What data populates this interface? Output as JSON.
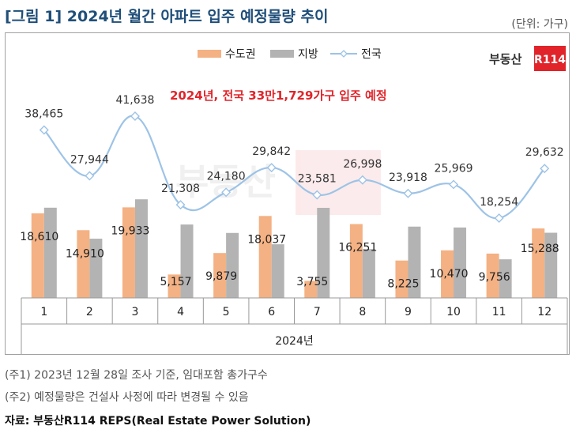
{
  "header": {
    "title": "[그림 1] 2024년 월간 아파트 입주 예정물량 추이",
    "unit": "(단위: 가구)"
  },
  "logo": {
    "text_left": "부동산",
    "text_box": "R114",
    "color": "#e0242a"
  },
  "annotation": {
    "text": "2024년, 전국 33만1,729가구 입주 예정",
    "color": "#e0242a"
  },
  "notes": [
    "(주1) 2023년 12월 28일 조사 기준, 임대포함 총가구수",
    "(주2) 예정물량은 건설사 사정에 따라 변경될 수 있음"
  ],
  "source": "자료: 부동산R114 REPS(Real Estate Power Solution)",
  "colors": {
    "capital": "#f4b183",
    "local": "#b3b3b3",
    "national": "#9dc3e6"
  },
  "chart_data": {
    "type": "bar",
    "categories": [
      "1",
      "2",
      "3",
      "4",
      "5",
      "6",
      "7",
      "8",
      "9",
      "10",
      "11",
      "12"
    ],
    "xlabel": "2024년",
    "series": [
      {
        "name": "수도권",
        "type": "bar",
        "values": [
          18610,
          14910,
          19933,
          5157,
          9879,
          18037,
          3755,
          16251,
          8225,
          10470,
          9756,
          15288
        ]
      },
      {
        "name": "지방",
        "type": "bar",
        "values": [
          19855,
          13034,
          21705,
          16151,
          14301,
          11805,
          19826,
          10747,
          15693,
          15499,
          8498,
          14344
        ]
      },
      {
        "name": "전국",
        "type": "line",
        "values": [
          38465,
          27944,
          41638,
          21308,
          24180,
          29842,
          23581,
          26998,
          23918,
          25969,
          18254,
          29632
        ]
      }
    ],
    "bar_labels": [
      "18,610",
      "14,910",
      "19,933",
      "5,157",
      "9,879",
      "18,037",
      "3,755",
      "16,251",
      "8,225",
      "10,470",
      "9,756",
      "15,288"
    ],
    "line_labels": [
      "38,465",
      "27,944",
      "41,638",
      "21,308",
      "24,180",
      "29,842",
      "23,581",
      "26,998",
      "23,918",
      "25,969",
      "18,254",
      "29,632"
    ],
    "legend": "top"
  }
}
